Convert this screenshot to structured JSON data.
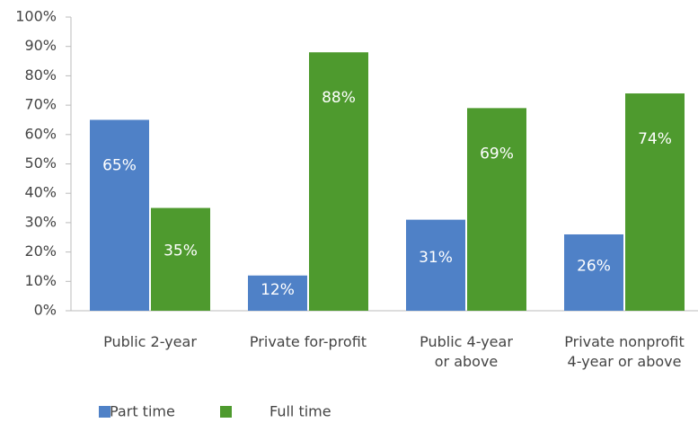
{
  "chart_data": {
    "type": "bar",
    "categories": [
      [
        "Public 2-year"
      ],
      [
        "Private for-profit"
      ],
      [
        "Public 4-year",
        "or above"
      ],
      [
        "Private nonprofit",
        "4-year or above"
      ]
    ],
    "series": [
      {
        "name": "Part time",
        "color": "#4f81c7",
        "values": [
          65,
          12,
          31,
          26
        ],
        "value_labels": [
          "65%",
          "12%",
          "31%",
          "26%"
        ]
      },
      {
        "name": "Full time",
        "color": "#4e9a2e",
        "values": [
          35,
          88,
          69,
          74
        ],
        "value_labels": [
          "35%",
          "88%",
          "69%",
          "74%"
        ]
      }
    ],
    "ylim": [
      0,
      100
    ],
    "yticks": [
      {
        "value": 0,
        "label": "0%"
      },
      {
        "value": 10,
        "label": "10%"
      },
      {
        "value": 20,
        "label": "20%"
      },
      {
        "value": 30,
        "label": "30%"
      },
      {
        "value": 40,
        "label": "40%"
      },
      {
        "value": 50,
        "label": "50%"
      },
      {
        "value": 60,
        "label": "60%"
      },
      {
        "value": 70,
        "label": "70%"
      },
      {
        "value": 80,
        "label": "80%"
      },
      {
        "value": 90,
        "label": "90%"
      },
      {
        "value": 100,
        "label": "100%"
      }
    ],
    "grid": false
  }
}
